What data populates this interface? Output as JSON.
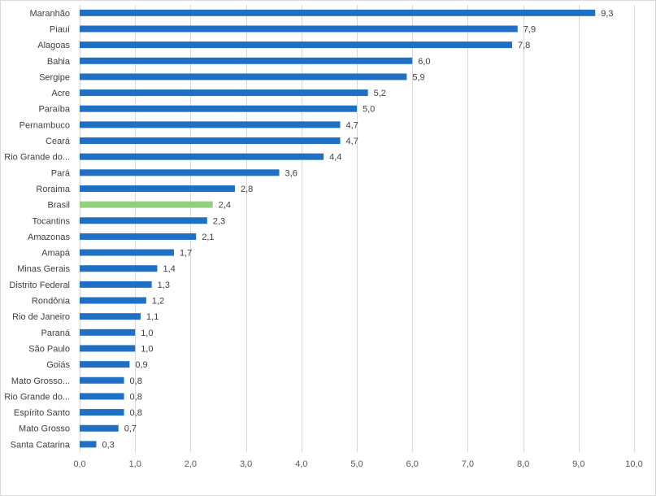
{
  "chart_data": {
    "type": "bar",
    "orientation": "horizontal",
    "categories": [
      "Maranhão",
      "Piauí",
      "Alagoas",
      "Bahia",
      "Sergipe",
      "Acre",
      "Paraíba",
      "Pernambuco",
      "Ceará",
      "Rio Grande do...",
      "Pará",
      "Roraima",
      "Brasil",
      "Tocantins",
      "Amazonas",
      "Amapá",
      "Minas Gerais",
      "Distrito Federal",
      "Rondônia",
      "Rio de Janeiro",
      "Paraná",
      "São Paulo",
      "Goiás",
      "Mato Grosso...",
      "Rio Grande do...",
      "Espírito Santo",
      "Mato Grosso",
      "Santa Catarina"
    ],
    "values": [
      9.3,
      7.9,
      7.8,
      6.0,
      5.9,
      5.2,
      5.0,
      4.7,
      4.7,
      4.4,
      3.6,
      2.8,
      2.4,
      2.3,
      2.1,
      1.7,
      1.4,
      1.3,
      1.2,
      1.1,
      1.0,
      1.0,
      0.9,
      0.8,
      0.8,
      0.8,
      0.7,
      0.3
    ],
    "value_labels": [
      "9,3",
      "7,9",
      "7,8",
      "6,0",
      "5,9",
      "5,2",
      "5,0",
      "4,7",
      "4,7",
      "4,4",
      "3,6",
      "2,8",
      "2,4",
      "2,3",
      "2,1",
      "1,7",
      "1,4",
      "1,3",
      "1,2",
      "1,1",
      "1,0",
      "1,0",
      "0,9",
      "0,8",
      "0,8",
      "0,8",
      "0,7",
      "0,3"
    ],
    "highlight_category": "Brasil",
    "xlim": [
      0,
      10
    ],
    "x_ticks": [
      0,
      1,
      2,
      3,
      4,
      5,
      6,
      7,
      8,
      9,
      10
    ],
    "x_tick_labels": [
      "0,0",
      "1,0",
      "2,0",
      "3,0",
      "4,0",
      "5,0",
      "6,0",
      "7,0",
      "8,0",
      "9,0",
      "10,0"
    ],
    "grid": true,
    "colors": {
      "bar": "#1f6fc4",
      "highlight": "#93cf7e",
      "grid": "#d9d9d9",
      "text": "#404040"
    }
  }
}
